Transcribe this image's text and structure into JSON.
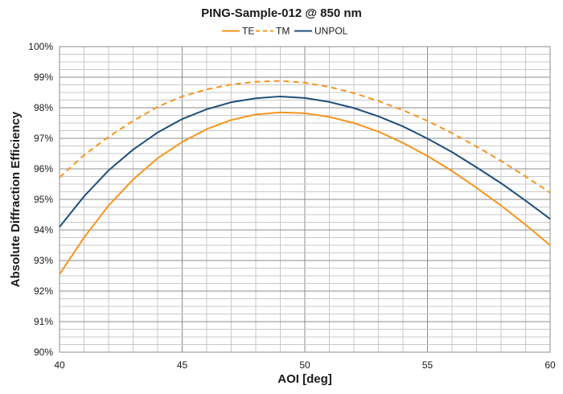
{
  "chart_data": {
    "type": "line",
    "title": "PING-Sample-012 @ 850 nm",
    "xlabel": "AOI [deg]",
    "ylabel": "Absolute Diffraction Efficiency",
    "xlim": [
      40,
      60
    ],
    "ylim": [
      90,
      100
    ],
    "x_ticks": [
      40,
      45,
      50,
      55,
      60
    ],
    "y_ticks": [
      90,
      91,
      92,
      93,
      94,
      95,
      96,
      97,
      98,
      99,
      100
    ],
    "x_tick_labels": [
      "40",
      "45",
      "50",
      "55",
      "60"
    ],
    "y_tick_labels": [
      "90%",
      "91%",
      "92%",
      "93%",
      "94%",
      "95%",
      "96%",
      "97%",
      "98%",
      "99%",
      "100%"
    ],
    "grid": true,
    "legend_position": "top-center",
    "x": [
      40,
      41,
      42,
      43,
      44,
      45,
      46,
      47,
      48,
      49,
      50,
      51,
      52,
      53,
      54,
      55,
      56,
      57,
      58,
      59,
      60
    ],
    "series": [
      {
        "name": "TE",
        "style": "solid",
        "color": "#f7941d",
        "values": [
          92.55,
          93.75,
          94.8,
          95.65,
          96.35,
          96.88,
          97.3,
          97.6,
          97.78,
          97.85,
          97.82,
          97.7,
          97.5,
          97.22,
          96.85,
          96.42,
          95.93,
          95.38,
          94.8,
          94.17,
          93.5
        ]
      },
      {
        "name": "TM",
        "style": "dashed",
        "color": "#f7941d",
        "values": [
          95.72,
          96.45,
          97.05,
          97.57,
          98.03,
          98.37,
          98.6,
          98.76,
          98.85,
          98.88,
          98.82,
          98.68,
          98.48,
          98.22,
          97.92,
          97.57,
          97.17,
          96.73,
          96.26,
          95.75,
          95.22
        ]
      },
      {
        "name": "UNPOL",
        "style": "solid",
        "color": "#1f4e79",
        "values": [
          94.1,
          95.1,
          95.95,
          96.63,
          97.19,
          97.63,
          97.95,
          98.18,
          98.31,
          98.37,
          98.32,
          98.19,
          97.99,
          97.72,
          97.39,
          96.99,
          96.55,
          96.05,
          95.53,
          94.96,
          94.36
        ]
      }
    ]
  }
}
